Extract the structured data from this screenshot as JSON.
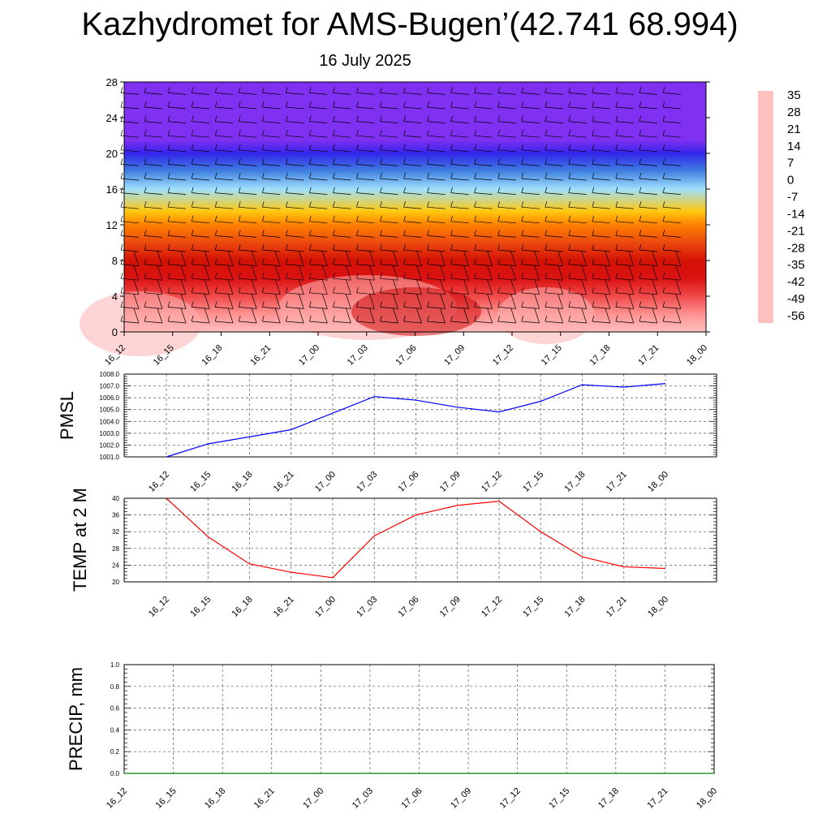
{
  "title": "Kazhydromet for AMS-Bugen’(42.741 68.994)",
  "subtitle": "16 July 2025",
  "chart_data": [
    {
      "type": "heatmap",
      "xlabel": "",
      "ylabel": "",
      "x_ticks": [
        "16_12",
        "16_15",
        "16_18",
        "16_21",
        "17_00",
        "17_03",
        "17_06",
        "17_09",
        "17_12",
        "17_15",
        "17_18",
        "17_21",
        "18_00"
      ],
      "y_ticks": [
        0,
        4,
        8,
        12,
        16,
        20,
        24,
        28
      ],
      "ylim": [
        0,
        28
      ],
      "colorbar_labels": [
        35,
        28,
        21,
        14,
        7,
        0,
        -7,
        -14,
        -21,
        -28,
        -35,
        -42,
        -49,
        -56
      ],
      "colorbar_colors": [
        "#ffc0c0",
        "#ff8080",
        "#e52020",
        "#cc0000",
        "#e84010",
        "#ff8000",
        "#ffc000",
        "#ffff60",
        "#b0e8ff",
        "#40b0f0",
        "#4080e0",
        "#4040d0",
        "#3020f0",
        "#8030f0"
      ],
      "profile": [
        {
          "z": 0,
          "t": 35
        },
        {
          "z": 2,
          "t": 30
        },
        {
          "z": 4,
          "t": 24
        },
        {
          "z": 6,
          "t": 18
        },
        {
          "z": 8,
          "t": 12
        },
        {
          "z": 10,
          "t": 6
        },
        {
          "z": 12,
          "t": 0
        },
        {
          "z": 13.5,
          "t": -8
        },
        {
          "z": 16,
          "t": -22
        },
        {
          "z": 18,
          "t": -35
        },
        {
          "z": 20,
          "t": -48
        },
        {
          "z": 21.5,
          "t": -58
        },
        {
          "z": 23,
          "t": -56
        },
        {
          "z": 28,
          "t": -56
        }
      ],
      "wind_barbs": true
    },
    {
      "type": "line",
      "ylabel": "PMSL",
      "x_ticks": [
        "16_12",
        "16_15",
        "16_18",
        "16_21",
        "17_00",
        "17_03",
        "17_06",
        "17_09",
        "17_12",
        "17_15",
        "17_18",
        "17_21",
        "18_00"
      ],
      "y_ticks": [
        "1001.0",
        "1002.0",
        "1003.0",
        "1004.0",
        "1005.0",
        "1006.0",
        "1007.0",
        "1008.0"
      ],
      "ylim": [
        1001,
        1008
      ],
      "series": [
        {
          "color": "#0000ff",
          "values": [
            1001.0,
            1002.1,
            1002.7,
            1003.3,
            1004.7,
            1006.1,
            1005.8,
            1005.2,
            1004.8,
            1005.7,
            1007.1,
            1006.9,
            1007.2
          ]
        }
      ],
      "grid": true
    },
    {
      "type": "line",
      "ylabel": "TEMP at 2 M",
      "x_ticks": [
        "16_12",
        "16_15",
        "16_18",
        "16_21",
        "17_00",
        "17_03",
        "17_06",
        "17_09",
        "17_12",
        "17_15",
        "17_18",
        "17_21",
        "18_00"
      ],
      "y_ticks": [
        "20",
        "24",
        "28",
        "32",
        "36",
        "40"
      ],
      "ylim": [
        20,
        40
      ],
      "series": [
        {
          "color": "#ff0000",
          "values": [
            40.0,
            30.8,
            24.3,
            22.3,
            21.0,
            31.0,
            36.0,
            38.3,
            39.3,
            32.0,
            26.0,
            23.6,
            23.2
          ]
        }
      ],
      "grid": true
    },
    {
      "type": "line",
      "ylabel": "PRECIP, mm",
      "x_ticks": [
        "16_12",
        "16_15",
        "16_18",
        "16_21",
        "17_00",
        "17_03",
        "17_06",
        "17_09",
        "17_12",
        "17_15",
        "17_18",
        "17_21",
        "18_00"
      ],
      "y_ticks": [
        "0.0",
        "0.2",
        "0.4",
        "0.6",
        "0.8",
        "1.0"
      ],
      "ylim": [
        0,
        1
      ],
      "series": [
        {
          "color": "#008000",
          "values": [
            0,
            0,
            0,
            0,
            0,
            0,
            0,
            0,
            0,
            0,
            0,
            0,
            0
          ]
        }
      ],
      "grid": true
    }
  ]
}
